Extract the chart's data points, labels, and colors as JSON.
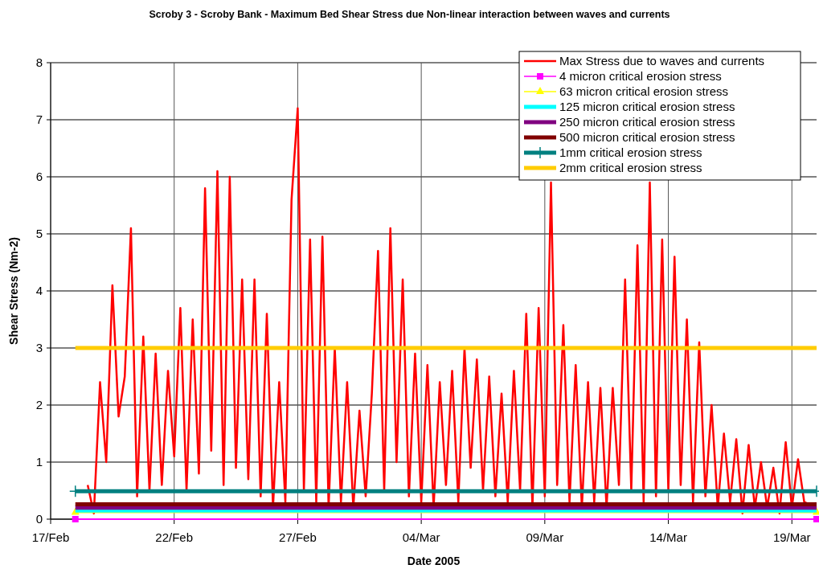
{
  "chart_data": {
    "type": "line",
    "title": "Scroby 3 - Scroby Bank - Maximum Bed Shear Stress due Non-linear interaction between waves and currents",
    "xlabel": "Date 2005",
    "ylabel": "Shear Stress (Nm-2)",
    "xlim": [
      "2005-02-17",
      "2005-03-20"
    ],
    "xticks": [
      {
        "value": "2005-02-17",
        "label": "17/Feb"
      },
      {
        "value": "2005-02-22",
        "label": "22/Feb"
      },
      {
        "value": "2005-02-27",
        "label": "27/Feb"
      },
      {
        "value": "2005-03-04",
        "label": "04/Mar"
      },
      {
        "value": "2005-03-09",
        "label": "09/Mar"
      },
      {
        "value": "2005-03-14",
        "label": "14/Mar"
      },
      {
        "value": "2005-03-19",
        "label": "19/Mar"
      }
    ],
    "ylim": [
      0,
      8
    ],
    "yticks": [
      0,
      1,
      2,
      3,
      4,
      5,
      6,
      7,
      8
    ],
    "grid": true,
    "legend": "top right",
    "series": [
      {
        "name": "Max Stress due to waves and currents",
        "color": "#ff0000",
        "marker": "none",
        "x": [
          "2005-02-18T12:00",
          "2005-02-18T18:00",
          "2005-02-19T00:00",
          "2005-02-19T06:00",
          "2005-02-19T12:00",
          "2005-02-19T18:00",
          "2005-02-20T00:00",
          "2005-02-20T06:00",
          "2005-02-20T12:00",
          "2005-02-20T18:00",
          "2005-02-21T00:00",
          "2005-02-21T06:00",
          "2005-02-21T12:00",
          "2005-02-21T18:00",
          "2005-02-22T00:00",
          "2005-02-22T06:00",
          "2005-02-22T12:00",
          "2005-02-22T18:00",
          "2005-02-23T00:00",
          "2005-02-23T06:00",
          "2005-02-23T12:00",
          "2005-02-23T18:00",
          "2005-02-24T00:00",
          "2005-02-24T06:00",
          "2005-02-24T12:00",
          "2005-02-24T18:00",
          "2005-02-25T00:00",
          "2005-02-25T06:00",
          "2005-02-25T12:00",
          "2005-02-25T18:00",
          "2005-02-26T00:00",
          "2005-02-26T06:00",
          "2005-02-26T12:00",
          "2005-02-26T18:00",
          "2005-02-27T00:00",
          "2005-02-27T06:00",
          "2005-02-27T12:00",
          "2005-02-27T18:00",
          "2005-02-28T00:00",
          "2005-02-28T06:00",
          "2005-02-28T12:00",
          "2005-02-28T18:00",
          "2005-03-01T00:00",
          "2005-03-01T06:00",
          "2005-03-01T12:00",
          "2005-03-01T18:00",
          "2005-03-02T00:00",
          "2005-03-02T06:00",
          "2005-03-02T12:00",
          "2005-03-02T18:00",
          "2005-03-03T00:00",
          "2005-03-03T06:00",
          "2005-03-03T12:00",
          "2005-03-03T18:00",
          "2005-03-04T00:00",
          "2005-03-04T06:00",
          "2005-03-04T12:00",
          "2005-03-04T18:00",
          "2005-03-05T00:00",
          "2005-03-05T06:00",
          "2005-03-05T12:00",
          "2005-03-05T18:00",
          "2005-03-06T00:00",
          "2005-03-06T06:00",
          "2005-03-06T12:00",
          "2005-03-06T18:00",
          "2005-03-07T00:00",
          "2005-03-07T06:00",
          "2005-03-07T12:00",
          "2005-03-07T18:00",
          "2005-03-08T00:00",
          "2005-03-08T06:00",
          "2005-03-08T12:00",
          "2005-03-08T18:00",
          "2005-03-09T00:00",
          "2005-03-09T06:00",
          "2005-03-09T12:00",
          "2005-03-09T18:00",
          "2005-03-10T00:00",
          "2005-03-10T06:00",
          "2005-03-10T12:00",
          "2005-03-10T18:00",
          "2005-03-11T00:00",
          "2005-03-11T06:00",
          "2005-03-11T12:00",
          "2005-03-11T18:00",
          "2005-03-12T00:00",
          "2005-03-12T06:00",
          "2005-03-12T12:00",
          "2005-03-12T18:00",
          "2005-03-13T00:00",
          "2005-03-13T06:00",
          "2005-03-13T12:00",
          "2005-03-13T18:00",
          "2005-03-14T00:00",
          "2005-03-14T06:00",
          "2005-03-14T12:00",
          "2005-03-14T18:00",
          "2005-03-15T00:00",
          "2005-03-15T06:00",
          "2005-03-15T12:00",
          "2005-03-15T18:00",
          "2005-03-16T00:00",
          "2005-03-16T06:00",
          "2005-03-16T12:00",
          "2005-03-16T18:00",
          "2005-03-17T00:00",
          "2005-03-17T06:00",
          "2005-03-17T12:00",
          "2005-03-17T18:00",
          "2005-03-18T00:00",
          "2005-03-18T06:00",
          "2005-03-18T12:00",
          "2005-03-18T18:00",
          "2005-03-19T00:00",
          "2005-03-19T06:00",
          "2005-03-19T12:00",
          "2005-03-19T18:00",
          "2005-03-20T00:00"
        ],
        "values": [
          0.6,
          0.1,
          2.4,
          1.0,
          4.1,
          1.8,
          2.5,
          5.1,
          0.4,
          3.2,
          0.5,
          2.9,
          0.6,
          2.6,
          1.1,
          3.7,
          0.5,
          3.5,
          0.8,
          5.8,
          1.2,
          6.1,
          0.6,
          6.0,
          0.9,
          4.2,
          0.7,
          4.2,
          0.4,
          3.6,
          0.2,
          2.4,
          0.3,
          5.6,
          7.2,
          0.5,
          4.9,
          0.3,
          4.95,
          0.2,
          3.0,
          0.3,
          2.4,
          0.2,
          1.9,
          0.4,
          2.2,
          4.7,
          0.5,
          5.1,
          1.0,
          4.2,
          0.4,
          2.9,
          0.3,
          2.7,
          0.2,
          2.4,
          0.6,
          2.6,
          0.3,
          3.0,
          0.9,
          2.8,
          0.5,
          2.5,
          0.4,
          2.2,
          0.3,
          2.6,
          0.5,
          3.6,
          0.2,
          3.7,
          0.4,
          5.9,
          0.6,
          3.4,
          0.3,
          2.7,
          0.2,
          2.4,
          0.3,
          2.3,
          0.2,
          2.3,
          0.6,
          4.2,
          0.5,
          4.8,
          0.3,
          5.9,
          0.4,
          4.9,
          0.5,
          4.6,
          0.6,
          3.5,
          0.3,
          3.1,
          0.4,
          2.0,
          0.2,
          1.5,
          0.3,
          1.4,
          0.1,
          1.3,
          0.2,
          1.0,
          0.2,
          0.9,
          0.1,
          1.35,
          0.2,
          1.05,
          0.3,
          0.25,
          0.2
        ]
      },
      {
        "name": "4 micron critical erosion stress",
        "color": "#ff00ff",
        "marker": "square",
        "x": [
          "2005-02-18",
          "2005-03-20"
        ],
        "values": [
          0,
          0
        ]
      },
      {
        "name": "63 micron critical erosion stress",
        "color": "#ffff00",
        "marker": "triangle",
        "x": [
          "2005-02-18",
          "2005-03-20"
        ],
        "values": [
          0.12,
          0.12
        ]
      },
      {
        "name": "125 micron critical erosion stress",
        "color": "#00ffff",
        "marker": "none",
        "x": [
          "2005-02-18",
          "2005-03-20"
        ],
        "values": [
          0.15,
          0.15
        ]
      },
      {
        "name": "250 micron critical erosion stress",
        "color": "#800080",
        "marker": "none",
        "x": [
          "2005-02-18",
          "2005-03-20"
        ],
        "values": [
          0.2,
          0.2
        ]
      },
      {
        "name": "500 micron critical erosion stress",
        "color": "#800000",
        "marker": "none",
        "x": [
          "2005-02-18",
          "2005-03-20"
        ],
        "values": [
          0.26,
          0.26
        ]
      },
      {
        "name": "1mm critical erosion stress",
        "color": "#008080",
        "marker": "cross",
        "x": [
          "2005-02-18",
          "2005-03-20"
        ],
        "values": [
          0.49,
          0.49
        ]
      },
      {
        "name": "2mm critical erosion stress",
        "color": "#ffcc00",
        "marker": "none",
        "x": [
          "2005-02-18",
          "2005-03-20"
        ],
        "values": [
          3.0,
          3.0
        ]
      }
    ]
  }
}
